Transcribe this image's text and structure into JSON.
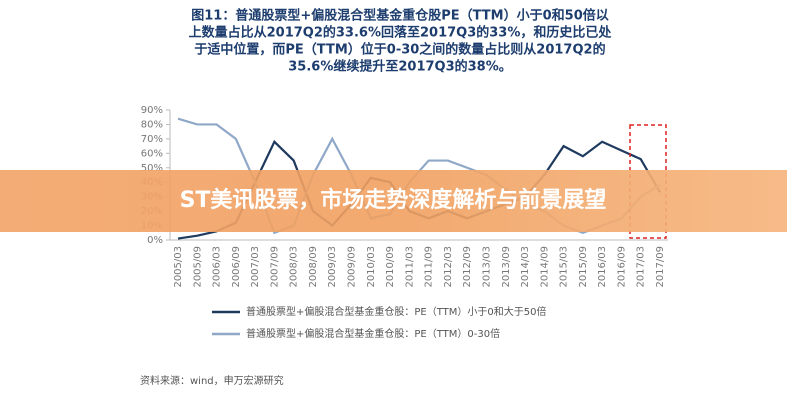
{
  "chart_data": {
    "type": "line",
    "title_lines": [
      "图11：普通股票型+偏股混合型基金重仓股PE（TTM）小于0和50倍以",
      "上数量占比从2017Q2的33.6%回落至2017Q3的33%，和历史比已处",
      "于适中位置，而PE（TTM）位于0-30之间的数量占比则从2017Q2的",
      "35.6%继续提升至2017Q3的38%。"
    ],
    "categories": [
      "2005/03",
      "2005/09",
      "2006/03",
      "2006/09",
      "2007/03",
      "2007/09",
      "2008/03",
      "2008/09",
      "2009/03",
      "2009/09",
      "2010/03",
      "2010/09",
      "2011/03",
      "2011/09",
      "2012/03",
      "2012/09",
      "2013/03",
      "2013/09",
      "2014/03",
      "2014/09",
      "2015/03",
      "2015/09",
      "2016/03",
      "2016/09",
      "2017/03",
      "2017/09"
    ],
    "series": [
      {
        "name": "普通股票型+偏股混合型基金重仓股：PE（TTM）小于0和大于50倍",
        "color": "#1f3a5f",
        "values": [
          1,
          3,
          6,
          12,
          40,
          68,
          55,
          20,
          10,
          25,
          43,
          40,
          20,
          15,
          20,
          15,
          20,
          25,
          30,
          45,
          65,
          58,
          68,
          62,
          56,
          33
        ]
      },
      {
        "name": "普通股票型+偏股混合型基金重仓股：PE（TTM）0-30倍",
        "color": "#8fa8c8",
        "values": [
          84,
          80,
          80,
          70,
          40,
          5,
          10,
          45,
          70,
          45,
          15,
          18,
          40,
          55,
          55,
          50,
          45,
          35,
          25,
          20,
          10,
          5,
          10,
          15,
          30,
          38
        ]
      }
    ],
    "ylim": [
      0,
      90
    ],
    "yticks": [
      {
        "value": 0,
        "label": "0%"
      },
      {
        "value": 10,
        "label": "10%"
      },
      {
        "value": 20,
        "label": "20%"
      },
      {
        "value": 30,
        "label": "30%"
      },
      {
        "value": 40,
        "label": "40%"
      },
      {
        "value": 50,
        "label": "50%"
      },
      {
        "value": 60,
        "label": "60%"
      },
      {
        "value": 70,
        "label": "70%"
      },
      {
        "value": 80,
        "label": "80%"
      },
      {
        "value": 90,
        "label": "90%"
      }
    ],
    "source": "资料来源：wind，申万宏源研究"
  },
  "banner": "ST美讯股票，市场走势深度解析与前景展望"
}
